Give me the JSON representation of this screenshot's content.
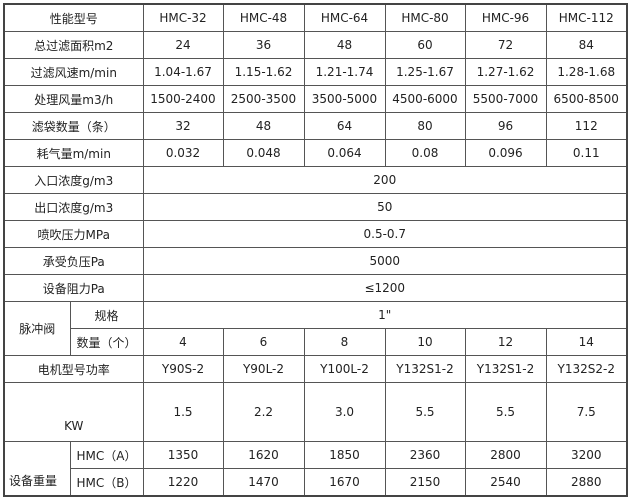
{
  "header": {
    "label": "性能型号",
    "models": [
      "HMC-32",
      "HMC-48",
      "HMC-64",
      "HMC-80",
      "HMC-96",
      "HMC-112"
    ]
  },
  "rows": [
    {
      "label": "总过滤面积m2",
      "values": [
        "24",
        "36",
        "48",
        "60",
        "72",
        "84"
      ]
    },
    {
      "label": "过滤风速m/min",
      "values": [
        "1.04-1.67",
        "1.15-1.62",
        "1.21-1.74",
        "1.25-1.67",
        "1.27-1.62",
        "1.28-1.68"
      ]
    },
    {
      "label": "处理风量m3/h",
      "values": [
        "1500-2400",
        "2500-3500",
        "3500-5000",
        "4500-6000",
        "5500-7000",
        "6500-8500"
      ]
    },
    {
      "label": "滤袋数量（条）",
      "values": [
        "32",
        "48",
        "64",
        "80",
        "96",
        "112"
      ]
    },
    {
      "label": "耗气量m/min",
      "values": [
        "0.032",
        "0.048",
        "0.064",
        "0.08",
        "0.096",
        "0.11"
      ]
    }
  ],
  "merged_rows": [
    {
      "label": "入口浓度g/m3",
      "value": "200"
    },
    {
      "label": "出口浓度g/m3",
      "value": "50"
    },
    {
      "label": "喷吹压力MPa",
      "value": "0.5-0.7"
    },
    {
      "label": "承受负压Pa",
      "value": "5000"
    },
    {
      "label": "设备阻力Pa",
      "value": "≤1200"
    }
  ],
  "pulse_valve": {
    "label": "脉冲阀",
    "spec_label": "规格",
    "spec_value": "1\"",
    "count_label": "数量（个）",
    "counts": [
      "4",
      "6",
      "8",
      "10",
      "12",
      "14"
    ]
  },
  "motor": {
    "label": "电机型号功率",
    "models": [
      "Y90S-2",
      "Y90L-2",
      "Y100L-2",
      "Y132S1-2",
      "Y132S1-2",
      "Y132S2-2"
    ],
    "kw_label": "KW",
    "kw": [
      "1.5",
      "2.2",
      "3.0",
      "5.5",
      "5.5",
      "7.5"
    ]
  },
  "weight": {
    "label": "设备重量",
    "a_label": "HMC（A）",
    "a": [
      "1350",
      "1620",
      "1850",
      "2360",
      "2800",
      "3200"
    ],
    "b_label": "HMC（B）",
    "b": [
      "1220",
      "1470",
      "1670",
      "2150",
      "2540",
      "2880"
    ]
  }
}
